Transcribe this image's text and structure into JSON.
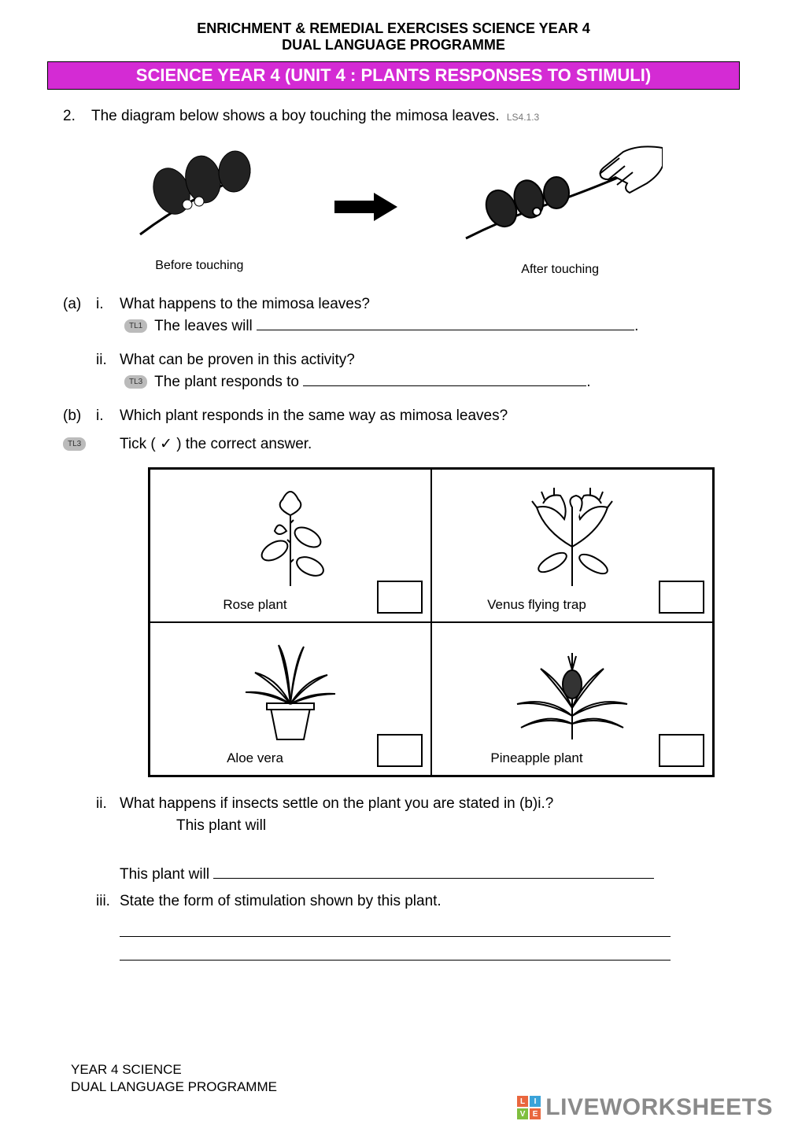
{
  "header": {
    "line1": "ENRICHMENT & REMEDIAL EXERCISES SCIENCE YEAR 4",
    "line2": "DUAL LANGUAGE PROGRAMME"
  },
  "titleBar": {
    "text": "SCIENCE YEAR 4 (UNIT 4 : PLANTS RESPONSES TO STIMULI)",
    "bg": "#d42bd4",
    "fg": "#ffffff"
  },
  "q2": {
    "num": "2.",
    "intro": "The diagram below shows a boy touching the mimosa leaves.",
    "code": "LS4.1.3",
    "diagram": {
      "beforeLabel": "Before touching",
      "afterLabel": "After touching",
      "arrow": "→"
    },
    "a": {
      "label": "(a)",
      "i": {
        "num": "i.",
        "q": "What happens to the mimosa leaves?",
        "badge": "TL1",
        "lead": "The leaves will"
      },
      "ii": {
        "num": "ii.",
        "q": "What can be proven in this activity?",
        "badge": "TL3",
        "lead": "The plant responds to"
      }
    },
    "b": {
      "label": "(b)",
      "badge": "TL3",
      "i": {
        "num": "i.",
        "q": "Which plant responds in the same way as mimosa leaves?",
        "instr": "Tick ( ✓ ) the correct answer."
      },
      "ii": {
        "num": "ii.",
        "q": "What happens if insects settle on the plant you are stated in (b)i.?",
        "lead": "This plant will"
      },
      "iii": {
        "num": "iii.",
        "q": "State the form of stimulation shown by this plant."
      }
    }
  },
  "plants": {
    "options": [
      {
        "label": "Rose plant"
      },
      {
        "label": "Venus flying trap"
      },
      {
        "label": "Aloe vera"
      },
      {
        "label": "Pineapple plant"
      }
    ]
  },
  "footer": {
    "line1": "YEAR 4 SCIENCE",
    "line2": "DUAL LANGUAGE PROGRAMME"
  },
  "watermark": {
    "text": "LIVEWORKSHEETS",
    "colors": [
      "#e9673e",
      "#3aa3d9",
      "#7fbf3f",
      "#e9673e"
    ],
    "letters": [
      "L",
      "I",
      "V",
      "E"
    ]
  }
}
